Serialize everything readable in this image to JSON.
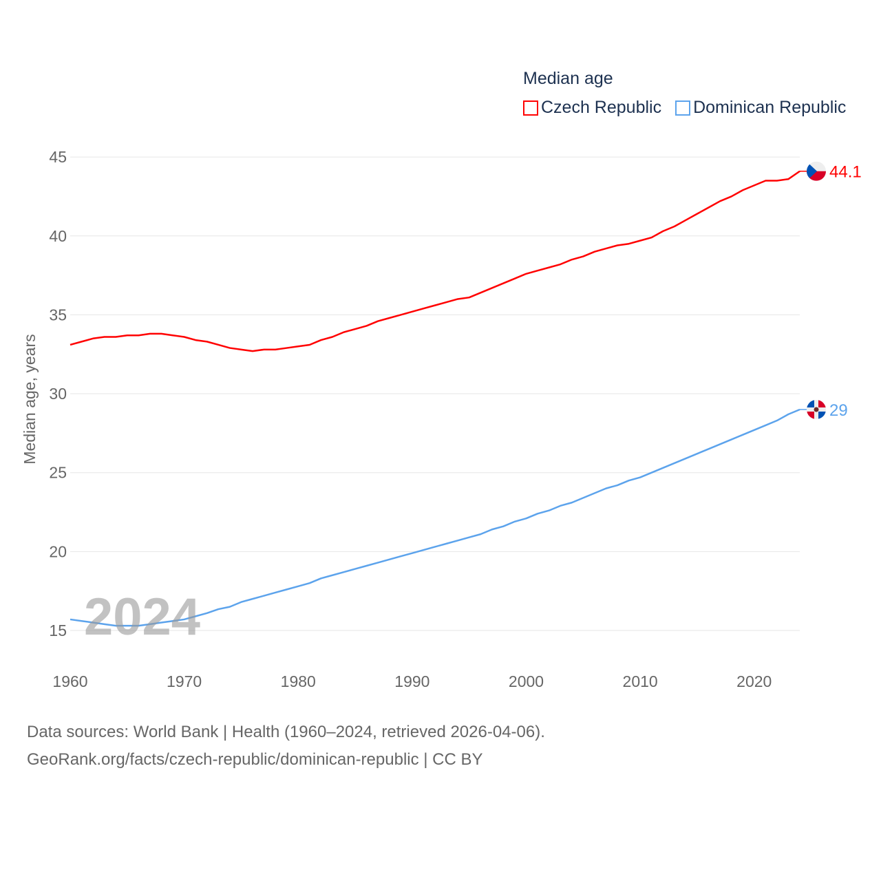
{
  "chart_data": {
    "type": "line",
    "legend_title": "Median age",
    "legend_placement": "top-right",
    "ylabel": "Median age, years",
    "xlabel": "",
    "xlim": [
      1960,
      2024
    ],
    "ylim": [
      13,
      46
    ],
    "x_ticks": [
      1960,
      1970,
      1980,
      1990,
      2000,
      2010,
      2020
    ],
    "y_ticks": [
      15,
      20,
      25,
      30,
      35,
      40,
      45
    ],
    "grid": true,
    "watermark_year": "2024",
    "x": [
      1960,
      1961,
      1962,
      1963,
      1964,
      1965,
      1966,
      1967,
      1968,
      1969,
      1970,
      1971,
      1972,
      1973,
      1974,
      1975,
      1976,
      1977,
      1978,
      1979,
      1980,
      1981,
      1982,
      1983,
      1984,
      1985,
      1986,
      1987,
      1988,
      1989,
      1990,
      1991,
      1992,
      1993,
      1994,
      1995,
      1996,
      1997,
      1998,
      1999,
      2000,
      2001,
      2002,
      2003,
      2004,
      2005,
      2006,
      2007,
      2008,
      2009,
      2010,
      2011,
      2012,
      2013,
      2014,
      2015,
      2016,
      2017,
      2018,
      2019,
      2020,
      2021,
      2022,
      2023,
      2024
    ],
    "series": [
      {
        "name": "Czech Republic",
        "color": "#ff0000",
        "end_label": "44.1",
        "values": [
          33.1,
          33.3,
          33.5,
          33.6,
          33.6,
          33.7,
          33.7,
          33.8,
          33.8,
          33.7,
          33.6,
          33.4,
          33.3,
          33.1,
          32.9,
          32.8,
          32.7,
          32.8,
          32.8,
          32.9,
          33.0,
          33.1,
          33.4,
          33.6,
          33.9,
          34.1,
          34.3,
          34.6,
          34.8,
          35.0,
          35.2,
          35.4,
          35.6,
          35.8,
          36.0,
          36.1,
          36.4,
          36.7,
          37.0,
          37.3,
          37.6,
          37.8,
          38.0,
          38.2,
          38.5,
          38.7,
          39.0,
          39.2,
          39.4,
          39.5,
          39.7,
          39.9,
          40.3,
          40.6,
          41.0,
          41.4,
          41.8,
          42.2,
          42.5,
          42.9,
          43.2,
          43.5,
          43.5,
          43.6,
          44.1
        ]
      },
      {
        "name": "Dominican Republic",
        "color": "#5ca3ec",
        "end_label": "29",
        "values": [
          15.7,
          15.6,
          15.5,
          15.4,
          15.3,
          15.3,
          15.3,
          15.4,
          15.5,
          15.6,
          15.7,
          15.9,
          16.1,
          16.35,
          16.5,
          16.8,
          17.0,
          17.2,
          17.4,
          17.6,
          17.8,
          18.0,
          18.3,
          18.5,
          18.7,
          18.9,
          19.1,
          19.3,
          19.5,
          19.7,
          19.9,
          20.1,
          20.3,
          20.5,
          20.7,
          20.9,
          21.1,
          21.4,
          21.6,
          21.9,
          22.1,
          22.4,
          22.6,
          22.9,
          23.1,
          23.4,
          23.7,
          24.0,
          24.2,
          24.5,
          24.7,
          25.0,
          25.3,
          25.6,
          25.9,
          26.2,
          26.5,
          26.8,
          27.1,
          27.4,
          27.7,
          28.0,
          28.3,
          28.7,
          29.0
        ]
      }
    ]
  },
  "footer": {
    "line1": "Data sources: World Bank | Health (1960–2024, retrieved 2026-04-06).",
    "line2": "GeoRank.org/facts/czech-republic/dominican-republic | CC BY"
  }
}
